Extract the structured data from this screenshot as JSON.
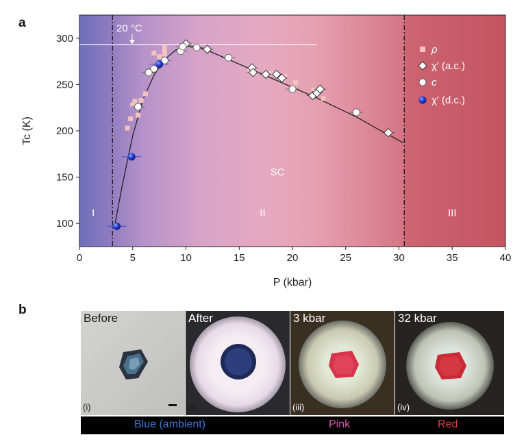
{
  "panel_a": {
    "letter": "a"
  },
  "panel_b": {
    "letter": "b"
  },
  "chart_data": {
    "type": "scatter",
    "xlabel": "P (kbar)",
    "ylabel": "Tc (K)",
    "xlim": [
      0,
      40
    ],
    "ylim": [
      75,
      325
    ],
    "x_ticks": [
      0,
      5,
      10,
      15,
      20,
      25,
      30,
      35,
      40
    ],
    "y_ticks": [
      100,
      150,
      200,
      250,
      300
    ],
    "grid": false,
    "legend_position": "top-right",
    "annotations": {
      "temp_label": "20 °C",
      "temp_line_y": 293,
      "region_sc": "SC",
      "region_1": "I",
      "region_2": "II",
      "region_3": "III",
      "boundary_1_x": 3.1,
      "boundary_2_x": 30.5
    },
    "series": [
      {
        "name": "ρ",
        "marker": "square",
        "color": "#f4c3bf",
        "x": [
          4.5,
          4.8,
          5.0,
          5.2,
          5.5,
          5.8,
          6.2,
          6.6,
          7.0,
          7.5,
          8.0,
          8.0,
          8.0,
          16.0,
          18.0,
          19.3,
          20.3,
          22.0,
          22.9
        ],
        "y": [
          203,
          213,
          228,
          232,
          217,
          233,
          240,
          262,
          284,
          280,
          287,
          283,
          290,
          265,
          262,
          259,
          252,
          244,
          235
        ]
      },
      {
        "name": "χ′ (a.c.)",
        "marker": "diamond",
        "color": "#ffffff",
        "x": [
          10.0,
          12.0,
          16.2,
          16.3,
          17.5,
          18.5,
          19.0,
          21.9,
          22.3,
          22.6,
          29.0
        ],
        "y": [
          294,
          288,
          268,
          263,
          261,
          261,
          257,
          238,
          241,
          245,
          198
        ]
      },
      {
        "name": "c",
        "marker": "circle",
        "color": "#ffffff",
        "x": [
          5.5,
          6.5,
          7.0,
          7.5,
          8.0,
          9.5,
          9.7,
          11.0,
          14.0,
          20.0,
          26.0
        ],
        "y": [
          226,
          263,
          267,
          272,
          276,
          286,
          291,
          290,
          279,
          245,
          220
        ]
      },
      {
        "name": "χ′ (d.c.)",
        "marker": "sphere",
        "color": "#2a3fd6",
        "x": [
          3.5,
          4.9,
          7.5
        ],
        "y": [
          97,
          172,
          272
        ]
      }
    ],
    "fit_curve": {
      "x": [
        3.3,
        4.0,
        5.0,
        6.0,
        7.0,
        8.0,
        9.0,
        10.0,
        11.0,
        12.0,
        14.0,
        16.0,
        18.0,
        20.0,
        22.0,
        24.0,
        26.0,
        28.0,
        29.0,
        30.4
      ],
      "y": [
        97,
        140,
        195,
        235,
        260,
        277,
        287,
        292,
        291,
        287,
        277,
        267,
        257,
        247,
        237,
        226,
        215,
        202,
        196,
        187
      ]
    }
  },
  "photos": [
    {
      "label": "Before",
      "num": "(i)"
    },
    {
      "label": "After",
      "num": "(ii)"
    },
    {
      "label": "3 kbar",
      "num": "(iii)"
    },
    {
      "label": "32 kbar",
      "num": "(iv)"
    }
  ],
  "color_bar": [
    {
      "text": "Blue (ambient)",
      "color": "#3f78d8"
    },
    {
      "text": "Pink",
      "color": "#d65bb0"
    },
    {
      "text": "Red",
      "color": "#e0453c"
    }
  ]
}
